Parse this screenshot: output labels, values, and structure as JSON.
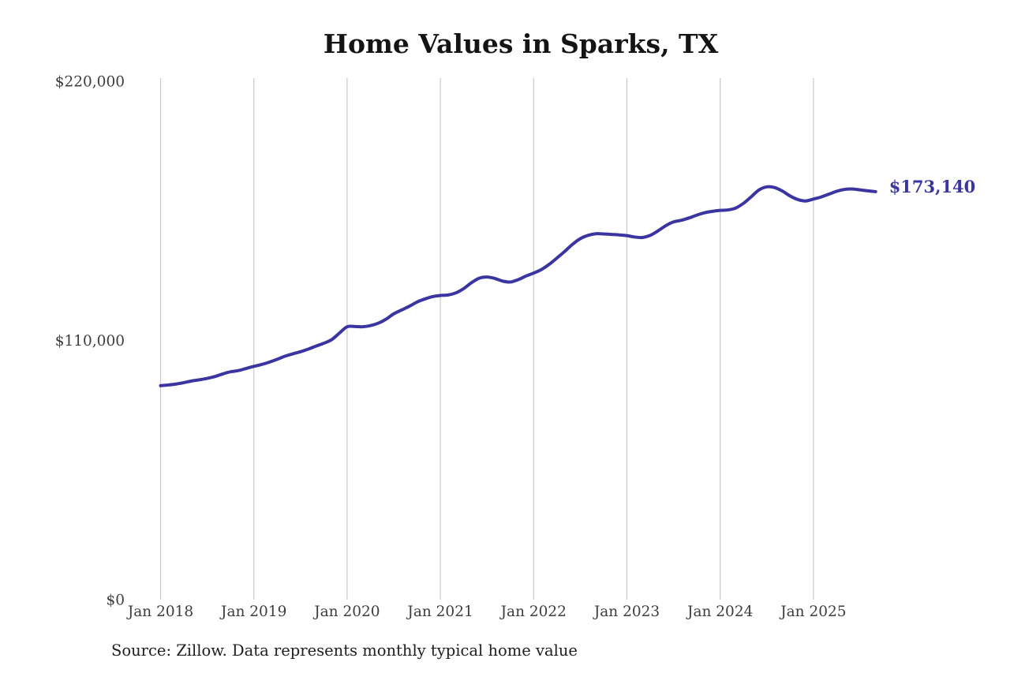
{
  "title": "Home Values in Sparks, TX",
  "source": "Source: Zillow. Data represents monthly typical home value",
  "colors": {
    "line": "#3A35A1",
    "grid": "#C9C9C9",
    "axis_text": "#3D3D3D",
    "title_text": "#141414",
    "source_text": "#1E1E1E"
  },
  "chart_data": {
    "type": "line",
    "title": "Home Values in Sparks, TX",
    "x_start": "2018-01",
    "x_interval": "month",
    "x_tick_labels": [
      "Jan 2018",
      "Jan 2019",
      "Jan 2020",
      "Jan 2021",
      "Jan 2022",
      "Jan 2023",
      "Jan 2024",
      "Jan 2025"
    ],
    "y_ticks": [
      {
        "value": 220000,
        "label": "$220,000"
      },
      {
        "value": 110000,
        "label": "$110,000"
      },
      {
        "value": 0,
        "label": "$0"
      }
    ],
    "ylim": [
      0,
      220000
    ],
    "grid": "vertical-only",
    "legend": "none",
    "end_annotation": {
      "text": "$173,140",
      "value": 173140
    },
    "series": [
      {
        "name": "Monthly typical home value",
        "values": [
          90800,
          91100,
          91500,
          92100,
          92800,
          93300,
          93900,
          94700,
          95800,
          96700,
          97200,
          98100,
          99000,
          99800,
          100800,
          102000,
          103300,
          104300,
          105200,
          106300,
          107600,
          108800,
          110300,
          113100,
          115800,
          115900,
          115800,
          116300,
          117300,
          119000,
          121300,
          122900,
          124500,
          126300,
          127600,
          128600,
          129100,
          129300,
          130200,
          132000,
          134500,
          136400,
          136900,
          136300,
          135200,
          134800,
          135800,
          137300,
          138600,
          140100,
          142300,
          145000,
          147800,
          150800,
          153200,
          154600,
          155300,
          155200,
          155000,
          154800,
          154500,
          153900,
          153700,
          154600,
          156500,
          158700,
          160300,
          161000,
          162000,
          163200,
          164200,
          164800,
          165200,
          165400,
          166200,
          168200,
          171000,
          173900,
          175200,
          174900,
          173400,
          171300,
          169800,
          169200,
          170000,
          170900,
          172100,
          173300,
          174100,
          174300,
          173900,
          173500,
          173140
        ]
      }
    ]
  }
}
